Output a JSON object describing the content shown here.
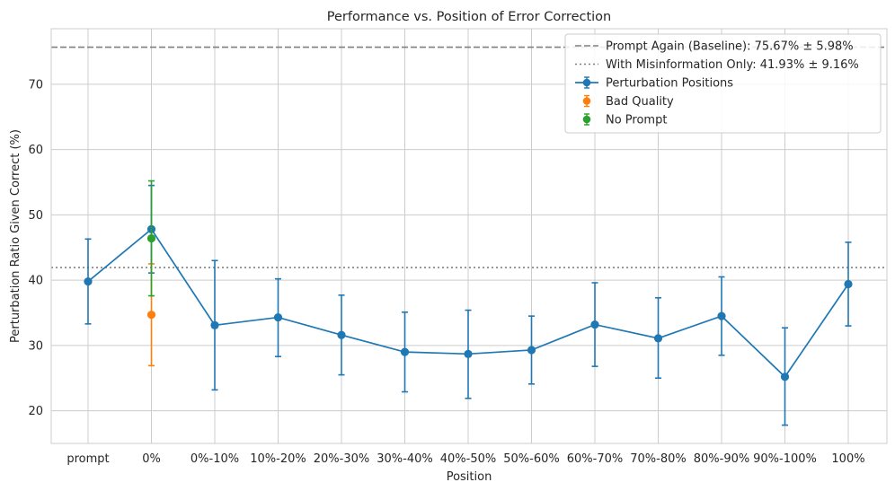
{
  "chart_data": {
    "type": "line",
    "title": "Performance vs. Position of Error Correction",
    "xlabel": "Position",
    "ylabel": "Perturbation Ratio Given Correct (%)",
    "categories": [
      "prompt",
      "0%",
      "0%-10%",
      "10%-20%",
      "20%-30%",
      "30%-40%",
      "40%-50%",
      "50%-60%",
      "60%-70%",
      "70%-80%",
      "80%-90%",
      "90%-100%",
      "100%"
    ],
    "ylim": [
      15,
      78.5
    ],
    "yticks": [
      20,
      30,
      40,
      50,
      60,
      70
    ],
    "grid": true,
    "legend_position": "top-right",
    "series": [
      {
        "name": "Perturbation Positions",
        "color": "#1f77b4",
        "connect": true,
        "points": [
          {
            "category": "prompt",
            "y": 39.8,
            "lo": 33.3,
            "hi": 46.3
          },
          {
            "category": "0%",
            "y": 47.8,
            "lo": 41.1,
            "hi": 54.5
          },
          {
            "category": "0%-10%",
            "y": 33.1,
            "lo": 23.2,
            "hi": 43.0
          },
          {
            "category": "10%-20%",
            "y": 34.3,
            "lo": 28.3,
            "hi": 40.2
          },
          {
            "category": "20%-30%",
            "y": 31.6,
            "lo": 25.5,
            "hi": 37.7
          },
          {
            "category": "30%-40%",
            "y": 29.0,
            "lo": 22.9,
            "hi": 35.1
          },
          {
            "category": "40%-50%",
            "y": 28.7,
            "lo": 21.9,
            "hi": 35.4
          },
          {
            "category": "50%-60%",
            "y": 29.3,
            "lo": 24.1,
            "hi": 34.5
          },
          {
            "category": "60%-70%",
            "y": 33.2,
            "lo": 26.8,
            "hi": 39.6
          },
          {
            "category": "70%-80%",
            "y": 31.1,
            "lo": 25.0,
            "hi": 37.3
          },
          {
            "category": "80%-90%",
            "y": 34.5,
            "lo": 28.5,
            "hi": 40.5
          },
          {
            "category": "90%-100%",
            "y": 25.2,
            "lo": 17.8,
            "hi": 32.7
          },
          {
            "category": "100%",
            "y": 39.4,
            "lo": 33.0,
            "hi": 45.8
          }
        ]
      },
      {
        "name": "Bad Quality",
        "color": "#ff7f0e",
        "connect": false,
        "points": [
          {
            "category": "0%",
            "y": 34.7,
            "lo": 26.9,
            "hi": 42.5
          }
        ]
      },
      {
        "name": "No Prompt",
        "color": "#2ca02c",
        "connect": false,
        "points": [
          {
            "category": "0%",
            "y": 46.4,
            "lo": 37.6,
            "hi": 55.2
          }
        ]
      }
    ],
    "reference_lines": [
      {
        "label": "Prompt Again (Baseline): 75.67% ± 5.98%",
        "y": 75.67,
        "style": "dashed",
        "color": "#808080"
      },
      {
        "label": "With Misinformation Only: 41.93% ± 9.16%",
        "y": 41.93,
        "style": "dotted",
        "color": "#808080"
      }
    ]
  }
}
